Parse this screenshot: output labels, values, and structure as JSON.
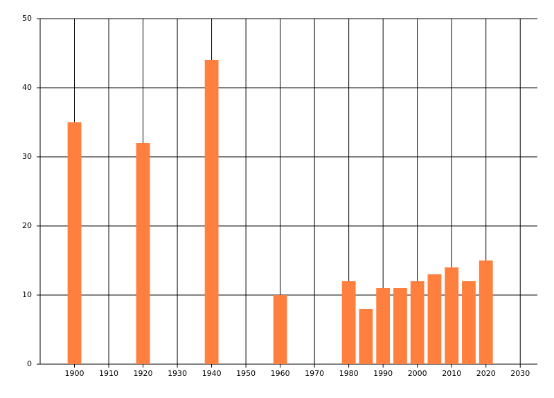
{
  "chart_data": {
    "type": "bar",
    "x": [
      1900,
      1920,
      1940,
      1960,
      1980,
      1985,
      1990,
      1995,
      2000,
      2005,
      2010,
      2015,
      2020
    ],
    "values": [
      35,
      32,
      44,
      10,
      12,
      8,
      11,
      11,
      12,
      13,
      14,
      12,
      15
    ],
    "color": "#ff7f3f",
    "xlim": [
      1890,
      2035
    ],
    "xticks": [
      1900,
      1910,
      1920,
      1930,
      1940,
      1950,
      1960,
      1970,
      1980,
      1990,
      2000,
      2010,
      2020,
      2030
    ],
    "ylim": [
      0,
      50
    ],
    "yticks": [
      0,
      10,
      20,
      30,
      40,
      50
    ],
    "grid": true
  }
}
